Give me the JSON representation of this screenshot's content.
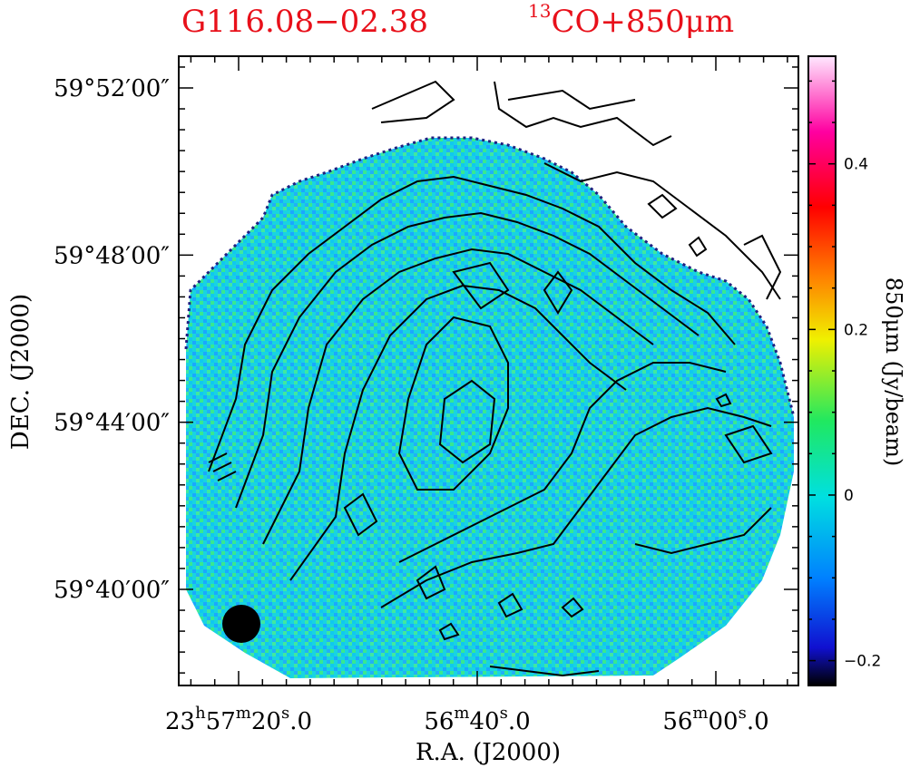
{
  "chart_data": {
    "type": "heatmap",
    "title_left": "G116.08−02.38",
    "title_right": {
      "sup": "13",
      "text": "CO+850μm"
    },
    "xlabel": "R.A. (J2000)",
    "ylabel": "DEC. (J2000)",
    "colorbar_label": "850μm (Jy/beam)",
    "x_ticks": [
      {
        "h": "23",
        "m": "57",
        "s": "20",
        "frac": ".0",
        "full": true
      },
      {
        "m": "56",
        "s": "40",
        "frac": ".0",
        "full": false
      },
      {
        "m": "56",
        "s": "00",
        "frac": ".0",
        "full": false
      }
    ],
    "y_ticks": [
      "59°52′00″",
      "59°48′00″",
      "59°44′00″",
      "59°40′00″"
    ],
    "y_tick_dec_arcmin": [
      52,
      48,
      44,
      40
    ],
    "x_tick_ra_s": [
      20,
      40,
      0
    ],
    "colorbar": {
      "min": -0.23,
      "max": 0.53,
      "ticks": [
        {
          "value": 0.4,
          "label": "0.4"
        },
        {
          "value": 0.2,
          "label": "0.2"
        },
        {
          "value": 0,
          "label": "0"
        },
        {
          "value": -0.2,
          "label": "−0.2"
        }
      ],
      "stops": [
        "#000000",
        "#1010d0",
        "#00a0ff",
        "#00e0e0",
        "#40f040",
        "#f0f000",
        "#ff8000",
        "#ff0000",
        "#ff00a0",
        "#ffe0ff"
      ]
    },
    "map_background_value": 0.0,
    "contours": "13CO integrated intensity",
    "beam": "filled circle, lower left"
  }
}
